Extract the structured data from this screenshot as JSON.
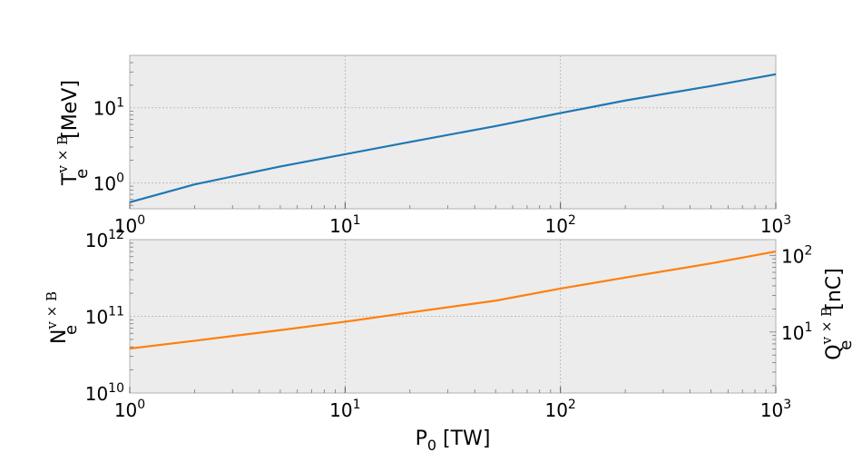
{
  "chart_data": [
    {
      "type": "line",
      "xscale": "log",
      "yscale": "log",
      "xlim": [
        1,
        1000
      ],
      "ylim": [
        0.45,
        50
      ],
      "grid": true,
      "x_ticks": [
        {
          "base": "10",
          "exp": "0",
          "value": 1
        },
        {
          "base": "10",
          "exp": "1",
          "value": 10
        },
        {
          "base": "10",
          "exp": "2",
          "value": 100
        },
        {
          "base": "10",
          "exp": "3",
          "value": 1000
        }
      ],
      "y_ticks": [
        {
          "base": "10",
          "exp": "0",
          "value": 1
        },
        {
          "base": "10",
          "exp": "1",
          "value": 10
        }
      ],
      "ylabel": {
        "main": "T",
        "sub": "e",
        "sup": "v × B",
        "unit": " [MeV]"
      },
      "series": [
        {
          "color": "#1f77b4",
          "x": [
            1,
            2,
            5,
            10,
            20,
            50,
            100,
            200,
            500,
            1000
          ],
          "y": [
            0.55,
            0.95,
            1.65,
            2.4,
            3.5,
            5.7,
            8.5,
            12.5,
            19.5,
            28
          ]
        }
      ]
    },
    {
      "type": "line",
      "xscale": "log",
      "yscale": "log",
      "xlim": [
        1,
        1000
      ],
      "ylim": [
        10000000000.0,
        1000000000000.0
      ],
      "grid": true,
      "x_ticks": [
        {
          "base": "10",
          "exp": "0",
          "value": 1
        },
        {
          "base": "10",
          "exp": "1",
          "value": 10
        },
        {
          "base": "10",
          "exp": "2",
          "value": 100
        },
        {
          "base": "10",
          "exp": "3",
          "value": 1000
        }
      ],
      "y_ticks": [
        {
          "base": "10",
          "exp": "10",
          "value": 10000000000.0
        },
        {
          "base": "10",
          "exp": "11",
          "value": 100000000000.0
        },
        {
          "base": "10",
          "exp": "12",
          "value": 1000000000000.0
        }
      ],
      "y2_ticks": [
        {
          "base": "10",
          "exp": "1",
          "value": 10
        },
        {
          "base": "10",
          "exp": "2",
          "value": 100
        }
      ],
      "y2scale": "log",
      "y2lim": [
        1.602,
        160.2
      ],
      "xlabel": {
        "main": "P",
        "sub": "0",
        "unit": " [TW]"
      },
      "ylabel": {
        "main": "N",
        "sub": "e",
        "sup": "v × B"
      },
      "y2label": {
        "main": "Q",
        "sub": "e",
        "sup": "v × B",
        "unit": " [nC]"
      },
      "series": [
        {
          "color": "#ff7f0e",
          "x": [
            1,
            2,
            5,
            10,
            20,
            50,
            100,
            200,
            500,
            1000
          ],
          "y": [
            38000000000.0,
            48000000000.0,
            66000000000.0,
            85000000000.0,
            112000000000.0,
            160000000000.0,
            230000000000.0,
            320000000000.0,
            490000000000.0,
            700000000000.0
          ]
        }
      ]
    }
  ]
}
